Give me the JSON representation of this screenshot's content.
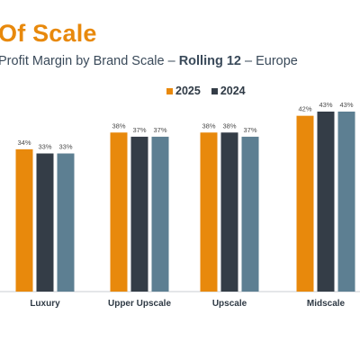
{
  "header": {
    "title": "Of Scale",
    "subtitle_main": "Profit Margin by Brand Scale – ",
    "subtitle_strong": "Rolling 12",
    "subtitle_tail": " – Europe"
  },
  "legend": {
    "items": [
      {
        "label": "2025",
        "color": "#e8890c"
      },
      {
        "label": "2024",
        "color": "#343d47"
      }
    ]
  },
  "chart_data": {
    "type": "bar",
    "categories": [
      "Luxury",
      "Upper Upscale",
      "Upscale",
      "Midscale"
    ],
    "series": [
      {
        "name": "2025",
        "color": "#e8890c",
        "values": [
          34,
          38,
          38,
          42
        ]
      },
      {
        "name": "2024",
        "color": "#343d47",
        "values": [
          33,
          37,
          38,
          43
        ]
      },
      {
        "color": "#5d7f92",
        "values": [
          33,
          37,
          37,
          43
        ]
      }
    ],
    "value_format": "percent",
    "ylim": [
      0,
      43
    ],
    "grid": false,
    "legend_position": "top-center"
  }
}
